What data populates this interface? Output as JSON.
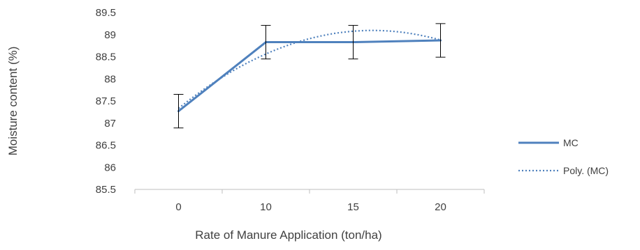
{
  "chart_data": {
    "type": "line",
    "title": "",
    "xlabel": "Rate of Manure Application (ton/ha)",
    "ylabel": "Moisture content (%)",
    "categories": [
      "0",
      "10",
      "15",
      "20"
    ],
    "ylim": [
      85.5,
      89.5
    ],
    "yticks": [
      "85.5",
      "86",
      "86.5",
      "87",
      "87.5",
      "88",
      "88.5",
      "89",
      "89.5"
    ],
    "grid": false,
    "legend_position": "right",
    "series": [
      {
        "name": "MC",
        "style": "solid",
        "color": "#4F81BD",
        "values": [
          87.27,
          88.83,
          88.83,
          88.87
        ],
        "error": [
          0.38,
          0.38,
          0.38,
          0.38
        ]
      },
      {
        "name": "Poly. (MC)",
        "style": "dotted",
        "color": "#4F81BD",
        "trendline": "polynomial",
        "values": [
          87.33,
          88.57,
          89.07,
          88.88
        ]
      }
    ]
  }
}
